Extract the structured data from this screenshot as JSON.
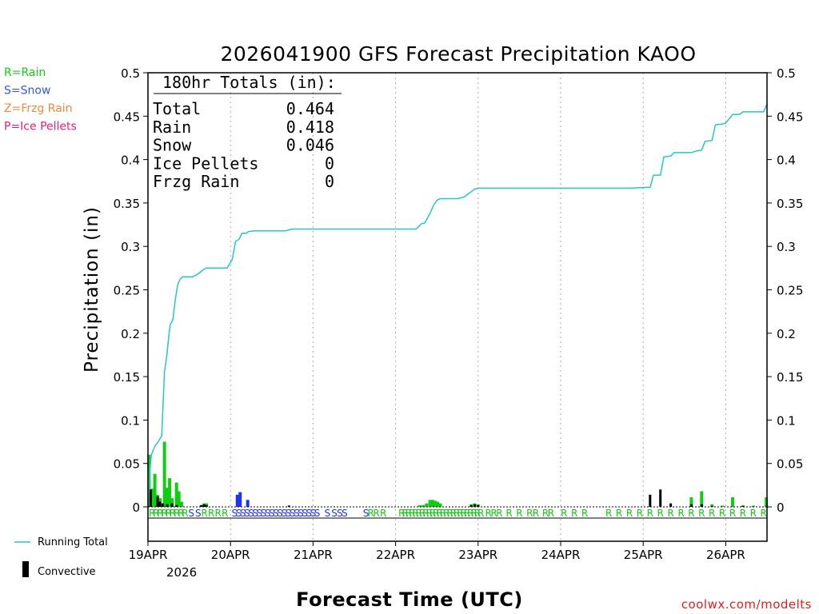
{
  "chart_data": {
    "type": "bar+line",
    "title": "2026041900 GFS Forecast Precipitation KAOO",
    "xlabel": "Forecast Time (UTC)",
    "ylabel": "Precipitation (in)",
    "ylim": [
      0,
      0.5
    ],
    "y_ticks": [
      0,
      0.05,
      0.1,
      0.15,
      0.2,
      0.25,
      0.3,
      0.35,
      0.4,
      0.45,
      0.5
    ],
    "y_tick_labels": [
      "0",
      "0.05",
      "0.1",
      "0.15",
      "0.2",
      "0.25",
      "0.3",
      "0.35",
      "0.4",
      "0.45",
      "0.5"
    ],
    "x_range_hours": [
      0,
      180
    ],
    "day_ticks": [
      {
        "hour": 0,
        "label": "19APR"
      },
      {
        "hour": 24,
        "label": "20APR"
      },
      {
        "hour": 48,
        "label": "21APR"
      },
      {
        "hour": 72,
        "label": "22APR"
      },
      {
        "hour": 96,
        "label": "23APR"
      },
      {
        "hour": 120,
        "label": "24APR"
      },
      {
        "hour": 144,
        "label": "25APR"
      },
      {
        "hour": 168,
        "label": "26APR"
      }
    ],
    "year_label": "2026",
    "precip_type_legend": [
      {
        "label": "R=Rain",
        "color": "#11cc11"
      },
      {
        "label": "S=Snow",
        "color": "#3355ee"
      },
      {
        "label": "Z=Frzg Rain",
        "color": "#f0893a"
      },
      {
        "label": "P=Ice Pellets",
        "color": "#e0207a"
      }
    ],
    "colors": {
      "rain": "#11cc11",
      "snow": "#2233ee",
      "convective": "#000000",
      "running_total": "#22c8c8"
    },
    "totals_box": {
      "header": "180hr Totals (in):",
      "rows": [
        {
          "label": "Total",
          "value": "0.464"
        },
        {
          "label": "Rain",
          "value": "0.418"
        },
        {
          "label": "Snow",
          "value": "0.046"
        },
        {
          "label": "Ice Pellets",
          "value": "0"
        },
        {
          "label": "Frzg Rain",
          "value": "0"
        }
      ]
    },
    "series_legend": {
      "running_total": "Running Total",
      "convective": "Convective"
    },
    "bars": [
      {
        "h": 0.3,
        "v": 0.06,
        "t": "rain"
      },
      {
        "h": 1.3,
        "v": 0.021,
        "t": "rain"
      },
      {
        "h": 2.0,
        "v": 0.038,
        "t": "rain"
      },
      {
        "h": 2.8,
        "v": 0.014,
        "t": "rain"
      },
      {
        "h": 3.5,
        "v": 0.01,
        "t": "rain"
      },
      {
        "h": 4.8,
        "v": 0.075,
        "t": "rain"
      },
      {
        "h": 5.6,
        "v": 0.022,
        "t": "rain"
      },
      {
        "h": 6.3,
        "v": 0.033,
        "t": "rain"
      },
      {
        "h": 7.0,
        "v": 0.01,
        "t": "rain"
      },
      {
        "h": 8.3,
        "v": 0.028,
        "t": "rain"
      },
      {
        "h": 9.0,
        "v": 0.018,
        "t": "rain"
      },
      {
        "h": 9.8,
        "v": 0.006,
        "t": "rain"
      },
      {
        "h": 15.5,
        "v": 0.002,
        "t": "rain"
      },
      {
        "h": 16.3,
        "v": 0.004,
        "t": "rain"
      },
      {
        "h": 17.0,
        "v": 0.004,
        "t": "rain"
      },
      {
        "h": 26.0,
        "v": 0.014,
        "t": "snow"
      },
      {
        "h": 26.8,
        "v": 0.017,
        "t": "snow"
      },
      {
        "h": 29.0,
        "v": 0.008,
        "t": "snow"
      },
      {
        "h": 79.0,
        "v": 0.002,
        "t": "rain"
      },
      {
        "h": 80.0,
        "v": 0.002,
        "t": "rain"
      },
      {
        "h": 81.0,
        "v": 0.004,
        "t": "rain"
      },
      {
        "h": 82.0,
        "v": 0.008,
        "t": "rain"
      },
      {
        "h": 82.8,
        "v": 0.008,
        "t": "rain"
      },
      {
        "h": 83.5,
        "v": 0.007,
        "t": "rain"
      },
      {
        "h": 84.2,
        "v": 0.006,
        "t": "rain"
      },
      {
        "h": 85.0,
        "v": 0.004,
        "t": "rain"
      },
      {
        "h": 94.0,
        "v": 0.003,
        "t": "rain"
      },
      {
        "h": 95.0,
        "v": 0.004,
        "t": "rain"
      },
      {
        "h": 96.0,
        "v": 0.003,
        "t": "rain"
      },
      {
        "h": 158.0,
        "v": 0.011,
        "t": "rain"
      },
      {
        "h": 161.0,
        "v": 0.018,
        "t": "rain"
      },
      {
        "h": 164.0,
        "v": 0.003,
        "t": "rain"
      },
      {
        "h": 167.0,
        "v": 0.0015,
        "t": "rain"
      },
      {
        "h": 170.0,
        "v": 0.011,
        "t": "rain"
      },
      {
        "h": 173.0,
        "v": 0.002,
        "t": "rain"
      },
      {
        "h": 176.0,
        "v": 0.0015,
        "t": "rain"
      },
      {
        "h": 179.8,
        "v": 0.011,
        "t": "rain"
      }
    ],
    "convective_bars": [
      {
        "h": 0.8,
        "v": 0.02
      },
      {
        "h": 2.8,
        "v": 0.012
      },
      {
        "h": 3.5,
        "v": 0.006
      },
      {
        "h": 4.3,
        "v": 0.004
      },
      {
        "h": 5.6,
        "v": 0.003
      },
      {
        "h": 7.0,
        "v": 0.004
      },
      {
        "h": 8.3,
        "v": 0.002
      },
      {
        "h": 15.5,
        "v": 0.002
      },
      {
        "h": 16.3,
        "v": 0.003
      },
      {
        "h": 17.0,
        "v": 0.002
      },
      {
        "h": 41.0,
        "v": 0.0015
      },
      {
        "h": 94.0,
        "v": 0.002
      },
      {
        "h": 95.0,
        "v": 0.003
      },
      {
        "h": 96.0,
        "v": 0.002
      },
      {
        "h": 146.0,
        "v": 0.014
      },
      {
        "h": 149.0,
        "v": 0.02
      },
      {
        "h": 152.0,
        "v": 0.004
      },
      {
        "h": 158.0,
        "v": 0.003
      },
      {
        "h": 161.0,
        "v": 0.003
      },
      {
        "h": 164.0,
        "v": 0.001
      },
      {
        "h": 173.0,
        "v": 0.001
      }
    ],
    "running_total": [
      [
        0,
        0
      ],
      [
        0.5,
        0.04
      ],
      [
        1,
        0.06
      ],
      [
        2,
        0.07
      ],
      [
        3,
        0.075
      ],
      [
        4,
        0.082
      ],
      [
        4.8,
        0.155
      ],
      [
        5.5,
        0.175
      ],
      [
        6,
        0.195
      ],
      [
        6.5,
        0.21
      ],
      [
        7.2,
        0.215
      ],
      [
        8,
        0.24
      ],
      [
        8.6,
        0.255
      ],
      [
        9.3,
        0.262
      ],
      [
        10,
        0.265
      ],
      [
        13,
        0.265
      ],
      [
        14.5,
        0.268
      ],
      [
        16,
        0.273
      ],
      [
        17,
        0.275
      ],
      [
        20,
        0.275
      ],
      [
        23,
        0.275
      ],
      [
        24.5,
        0.285
      ],
      [
        25.5,
        0.306
      ],
      [
        26.5,
        0.308
      ],
      [
        27.3,
        0.315
      ],
      [
        28.5,
        0.315
      ],
      [
        29.2,
        0.317
      ],
      [
        31,
        0.318
      ],
      [
        35,
        0.318
      ],
      [
        40,
        0.318
      ],
      [
        42,
        0.32
      ],
      [
        45,
        0.32
      ],
      [
        60,
        0.32
      ],
      [
        72,
        0.32
      ],
      [
        78,
        0.32
      ],
      [
        79.5,
        0.326
      ],
      [
        80.5,
        0.327
      ],
      [
        82,
        0.338
      ],
      [
        83,
        0.347
      ],
      [
        84,
        0.353
      ],
      [
        85,
        0.355
      ],
      [
        90,
        0.355
      ],
      [
        92,
        0.357
      ],
      [
        93,
        0.36
      ],
      [
        94,
        0.363
      ],
      [
        95,
        0.366
      ],
      [
        96,
        0.367
      ],
      [
        110,
        0.367
      ],
      [
        130,
        0.367
      ],
      [
        140,
        0.367
      ],
      [
        145,
        0.368
      ],
      [
        146,
        0.368
      ],
      [
        147,
        0.382
      ],
      [
        149,
        0.382
      ],
      [
        150,
        0.403
      ],
      [
        152,
        0.404
      ],
      [
        153,
        0.408
      ],
      [
        158,
        0.408
      ],
      [
        159.5,
        0.41
      ],
      [
        161,
        0.411
      ],
      [
        162,
        0.421
      ],
      [
        164,
        0.422
      ],
      [
        165,
        0.44
      ],
      [
        167,
        0.441
      ],
      [
        168,
        0.442
      ],
      [
        170,
        0.452
      ],
      [
        172,
        0.452
      ],
      [
        173,
        0.455
      ],
      [
        179,
        0.455
      ],
      [
        180,
        0.464
      ]
    ],
    "ptype_labels": [
      {
        "h": 1.2,
        "c": "R"
      },
      {
        "h": 2.4,
        "c": "R"
      },
      {
        "h": 3.6,
        "c": "R"
      },
      {
        "h": 4.8,
        "c": "R"
      },
      {
        "h": 6.0,
        "c": "R"
      },
      {
        "h": 7.2,
        "c": "R"
      },
      {
        "h": 8.4,
        "c": "R"
      },
      {
        "h": 9.6,
        "c": "R"
      },
      {
        "h": 10.8,
        "c": "R"
      },
      {
        "h": 12.6,
        "c": "S"
      },
      {
        "h": 14.6,
        "c": "S"
      },
      {
        "h": 16.4,
        "c": "R"
      },
      {
        "h": 18.4,
        "c": "R"
      },
      {
        "h": 20.4,
        "c": "R"
      },
      {
        "h": 22.4,
        "c": "R"
      },
      {
        "h": 25.2,
        "c": "S"
      },
      {
        "h": 26.4,
        "c": "S"
      },
      {
        "h": 27.6,
        "c": "S"
      },
      {
        "h": 28.8,
        "c": "S"
      },
      {
        "h": 30.0,
        "c": "S"
      },
      {
        "h": 31.2,
        "c": "S"
      },
      {
        "h": 32.4,
        "c": "S"
      },
      {
        "h": 33.6,
        "c": "S"
      },
      {
        "h": 34.8,
        "c": "S"
      },
      {
        "h": 36.0,
        "c": "S"
      },
      {
        "h": 37.2,
        "c": "S"
      },
      {
        "h": 38.4,
        "c": "S"
      },
      {
        "h": 39.6,
        "c": "S"
      },
      {
        "h": 40.8,
        "c": "S"
      },
      {
        "h": 42.0,
        "c": "S"
      },
      {
        "h": 43.2,
        "c": "S"
      },
      {
        "h": 44.4,
        "c": "S"
      },
      {
        "h": 45.6,
        "c": "S"
      },
      {
        "h": 46.8,
        "c": "S"
      },
      {
        "h": 48.0,
        "c": "S"
      },
      {
        "h": 49.2,
        "c": "S"
      },
      {
        "h": 52.2,
        "c": "S"
      },
      {
        "h": 54.2,
        "c": "S"
      },
      {
        "h": 55.8,
        "c": "S"
      },
      {
        "h": 57.2,
        "c": "S"
      },
      {
        "h": 63.4,
        "c": "S"
      },
      {
        "h": 64.8,
        "c": "R"
      },
      {
        "h": 66.4,
        "c": "R"
      },
      {
        "h": 68.4,
        "c": "R"
      },
      {
        "h": 73.8,
        "c": "R"
      },
      {
        "h": 74.8,
        "c": "R"
      },
      {
        "h": 75.8,
        "c": "R"
      },
      {
        "h": 76.8,
        "c": "R"
      },
      {
        "h": 77.8,
        "c": "R"
      },
      {
        "h": 78.8,
        "c": "R"
      },
      {
        "h": 79.8,
        "c": "R"
      },
      {
        "h": 80.8,
        "c": "R"
      },
      {
        "h": 81.8,
        "c": "R"
      },
      {
        "h": 82.8,
        "c": "R"
      },
      {
        "h": 83.8,
        "c": "R"
      },
      {
        "h": 84.8,
        "c": "R"
      },
      {
        "h": 85.8,
        "c": "R"
      },
      {
        "h": 86.8,
        "c": "R"
      },
      {
        "h": 87.8,
        "c": "R"
      },
      {
        "h": 88.8,
        "c": "R"
      },
      {
        "h": 89.8,
        "c": "R"
      },
      {
        "h": 90.8,
        "c": "R"
      },
      {
        "h": 91.8,
        "c": "R"
      },
      {
        "h": 92.8,
        "c": "R"
      },
      {
        "h": 93.8,
        "c": "R"
      },
      {
        "h": 94.8,
        "c": "R"
      },
      {
        "h": 95.8,
        "c": "R"
      },
      {
        "h": 96.8,
        "c": "R"
      },
      {
        "h": 99.0,
        "c": "R"
      },
      {
        "h": 100.6,
        "c": "R"
      },
      {
        "h": 102.2,
        "c": "R"
      },
      {
        "h": 105.0,
        "c": "R"
      },
      {
        "h": 108.0,
        "c": "R"
      },
      {
        "h": 111.0,
        "c": "R"
      },
      {
        "h": 112.8,
        "c": "R"
      },
      {
        "h": 115.6,
        "c": "R"
      },
      {
        "h": 117.2,
        "c": "R"
      },
      {
        "h": 121.0,
        "c": "R"
      },
      {
        "h": 124.0,
        "c": "R"
      },
      {
        "h": 127.0,
        "c": "R"
      },
      {
        "h": 134.0,
        "c": "R"
      },
      {
        "h": 137.0,
        "c": "R"
      },
      {
        "h": 140.0,
        "c": "R"
      },
      {
        "h": 143.0,
        "c": "R"
      },
      {
        "h": 146.0,
        "c": "R"
      },
      {
        "h": 149.0,
        "c": "R"
      },
      {
        "h": 152.0,
        "c": "R"
      },
      {
        "h": 155.0,
        "c": "R"
      },
      {
        "h": 158.0,
        "c": "R"
      },
      {
        "h": 161.0,
        "c": "R"
      },
      {
        "h": 164.0,
        "c": "R"
      },
      {
        "h": 167.0,
        "c": "R"
      },
      {
        "h": 170.0,
        "c": "R"
      },
      {
        "h": 173.0,
        "c": "R"
      },
      {
        "h": 176.0,
        "c": "R"
      },
      {
        "h": 179.0,
        "c": "R"
      }
    ],
    "watermark": "coolwx.com/modelts"
  }
}
